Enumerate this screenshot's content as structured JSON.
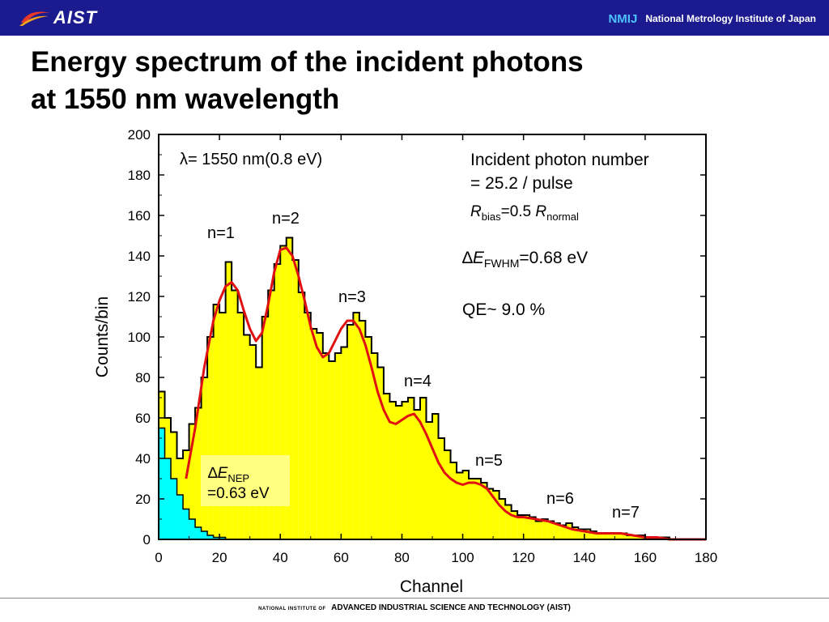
{
  "header": {
    "logo_text": "AIST",
    "nmij_logo": "NMIJ",
    "nmij_name": "National Metrology Institute of Japan"
  },
  "title": {
    "line1": "Energy spectrum of the incident photons",
    "line2": "at 1550 nm wavelength"
  },
  "footer": {
    "prefix": "NATIONAL INSTITUTE OF",
    "main": "ADVANCED INDUSTRIAL SCIENCE AND TECHNOLOGY (AIST)"
  },
  "colors": {
    "header_bg": "#1b1a8e",
    "histogram_fill": "#ffff00",
    "noise_fill": "#00ffff",
    "fit_line": "#e01010",
    "nep_box": "#ffff80"
  },
  "chart_data": {
    "type": "area",
    "xlabel": "Channel",
    "ylabel": "Counts/bin",
    "xlim": [
      0,
      180
    ],
    "ylim": [
      0,
      200
    ],
    "xticks": [
      "0",
      "20",
      "40",
      "60",
      "80",
      "100",
      "120",
      "140",
      "160",
      "180"
    ],
    "yticks": [
      "0",
      "20",
      "40",
      "60",
      "80",
      "100",
      "120",
      "140",
      "160",
      "180",
      "200"
    ],
    "series": [
      {
        "style": "step histogram",
        "color": "#ffff00",
        "x": [
          0,
          2,
          4,
          6,
          8,
          10,
          12,
          14,
          16,
          18,
          20,
          22,
          24,
          26,
          28,
          30,
          32,
          34,
          36,
          38,
          40,
          42,
          44,
          46,
          48,
          50,
          52,
          54,
          56,
          58,
          60,
          62,
          64,
          66,
          68,
          70,
          72,
          74,
          76,
          78,
          80,
          82,
          84,
          86,
          88,
          90,
          92,
          94,
          96,
          98,
          100,
          102,
          104,
          106,
          108,
          110,
          112,
          114,
          116,
          118,
          120,
          122,
          124,
          126,
          128,
          130,
          132,
          134,
          136,
          138,
          140,
          142,
          144,
          146,
          148,
          150,
          152,
          154,
          156,
          158,
          160,
          162,
          164,
          166,
          168,
          170,
          172,
          174,
          176,
          178
        ],
        "values": [
          73,
          60,
          53,
          40,
          44,
          57,
          65,
          80,
          100,
          116,
          112,
          137,
          123,
          112,
          101,
          96,
          85,
          110,
          123,
          136,
          145,
          149,
          138,
          122,
          112,
          104,
          102,
          92,
          88,
          92,
          95,
          106,
          112,
          108,
          100,
          92,
          85,
          72,
          68,
          66,
          68,
          70,
          64,
          70,
          58,
          62,
          50,
          44,
          38,
          33,
          34,
          30,
          30,
          28,
          25,
          24,
          20,
          17,
          14,
          12,
          12,
          11,
          9,
          10,
          9,
          8,
          7,
          8,
          6,
          5,
          5,
          4,
          3,
          3,
          3,
          3,
          3,
          2,
          2,
          2,
          1,
          1,
          1,
          1,
          0,
          0,
          0,
          0,
          0,
          0
        ]
      },
      {
        "style": "noise peak",
        "color": "#00ffff",
        "x": [
          0,
          2,
          4,
          6,
          8,
          10,
          12,
          14,
          16,
          18,
          20,
          22,
          24,
          26,
          28,
          30
        ],
        "values": [
          55,
          40,
          30,
          22,
          15,
          10,
          6,
          4,
          2,
          1,
          1,
          0,
          0,
          0,
          0,
          0
        ]
      },
      {
        "style": "fit",
        "color": "#e01010",
        "x": [
          9,
          12,
          15,
          18,
          20,
          22,
          24,
          26,
          28,
          30,
          32,
          34,
          36,
          38,
          40,
          42,
          44,
          46,
          48,
          50,
          52,
          54,
          56,
          58,
          60,
          62,
          64,
          66,
          68,
          70,
          72,
          74,
          76,
          78,
          80,
          82,
          84,
          86,
          88,
          90,
          92,
          94,
          96,
          98,
          100,
          102,
          104,
          106,
          108,
          110,
          112,
          114,
          116,
          118,
          120,
          124,
          128,
          132,
          136,
          140,
          144,
          148,
          152,
          156,
          160,
          164,
          168,
          172,
          180
        ],
        "values": [
          30,
          55,
          85,
          108,
          118,
          125,
          127,
          123,
          113,
          104,
          98,
          102,
          116,
          132,
          143,
          144,
          140,
          130,
          118,
          105,
          95,
          90,
          92,
          98,
          104,
          108,
          108,
          104,
          96,
          85,
          73,
          64,
          58,
          57,
          59,
          61,
          62,
          58,
          52,
          45,
          38,
          33,
          30,
          28,
          27,
          28,
          28,
          27,
          25,
          21,
          17,
          14,
          12,
          11,
          11,
          10,
          9,
          7,
          5,
          4,
          3,
          3,
          3,
          2,
          1,
          1,
          0,
          0,
          0
        ]
      }
    ],
    "annotations": {
      "wavelength": "λ= 1550 nm(0.8 eV)",
      "photon_number_line1": "Incident photon number",
      "photon_number_line2": "= 25.2 / pulse",
      "rbias_r1": "R",
      "rbias_sub1": "bias",
      "rbias_mid": "=0.5 ",
      "rbias_r2": "R",
      "rbias_sub2": "normal",
      "fwhm_delta": "∆",
      "fwhm_e": "E",
      "fwhm_sub": "FWHM",
      "fwhm_value": "=0.68 eV",
      "qe": "QE~ 9.0 %",
      "nep_delta": "∆",
      "nep_e": "E",
      "nep_sub": "NEP",
      "nep_value": "=0.63 eV",
      "peaks": [
        "n=1",
        "n=2",
        "n=3",
        "n=4",
        "n=5",
        "n=6",
        "n=7"
      ]
    }
  }
}
